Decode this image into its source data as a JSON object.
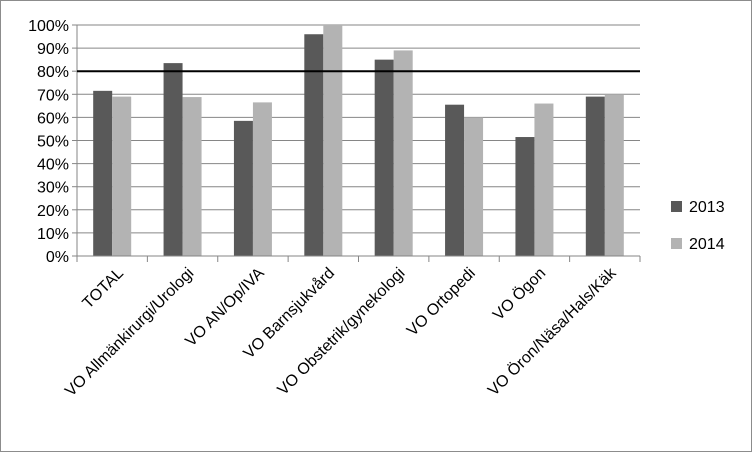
{
  "chart_data": {
    "type": "bar",
    "categories": [
      "TOTAL",
      "VO Allmänkirurgi/Urologi",
      "VO AN/Op/IVA",
      "VO Barnsjukvård",
      "VO Obstetrik/gynekologi",
      "VO Ortopedi",
      "VO Ögon",
      "VO Öron/Näsa/Hals/Käk"
    ],
    "series": [
      {
        "name": "2013",
        "color": "#595959",
        "values": [
          71.5,
          83.5,
          58.5,
          96,
          85,
          65.5,
          51.5,
          69
        ]
      },
      {
        "name": "2014",
        "color": "#b3b3b3",
        "values": [
          69,
          68.8,
          66.5,
          100,
          89,
          60,
          66,
          70
        ]
      }
    ],
    "ylim": [
      0,
      100
    ],
    "yticks": [
      "0%",
      "10%",
      "20%",
      "30%",
      "40%",
      "50%",
      "60%",
      "70%",
      "80%",
      "90%",
      "100%"
    ],
    "reference_line": 80,
    "grid": true,
    "legend_position": "right",
    "title": "",
    "xlabel": "",
    "ylabel": ""
  }
}
